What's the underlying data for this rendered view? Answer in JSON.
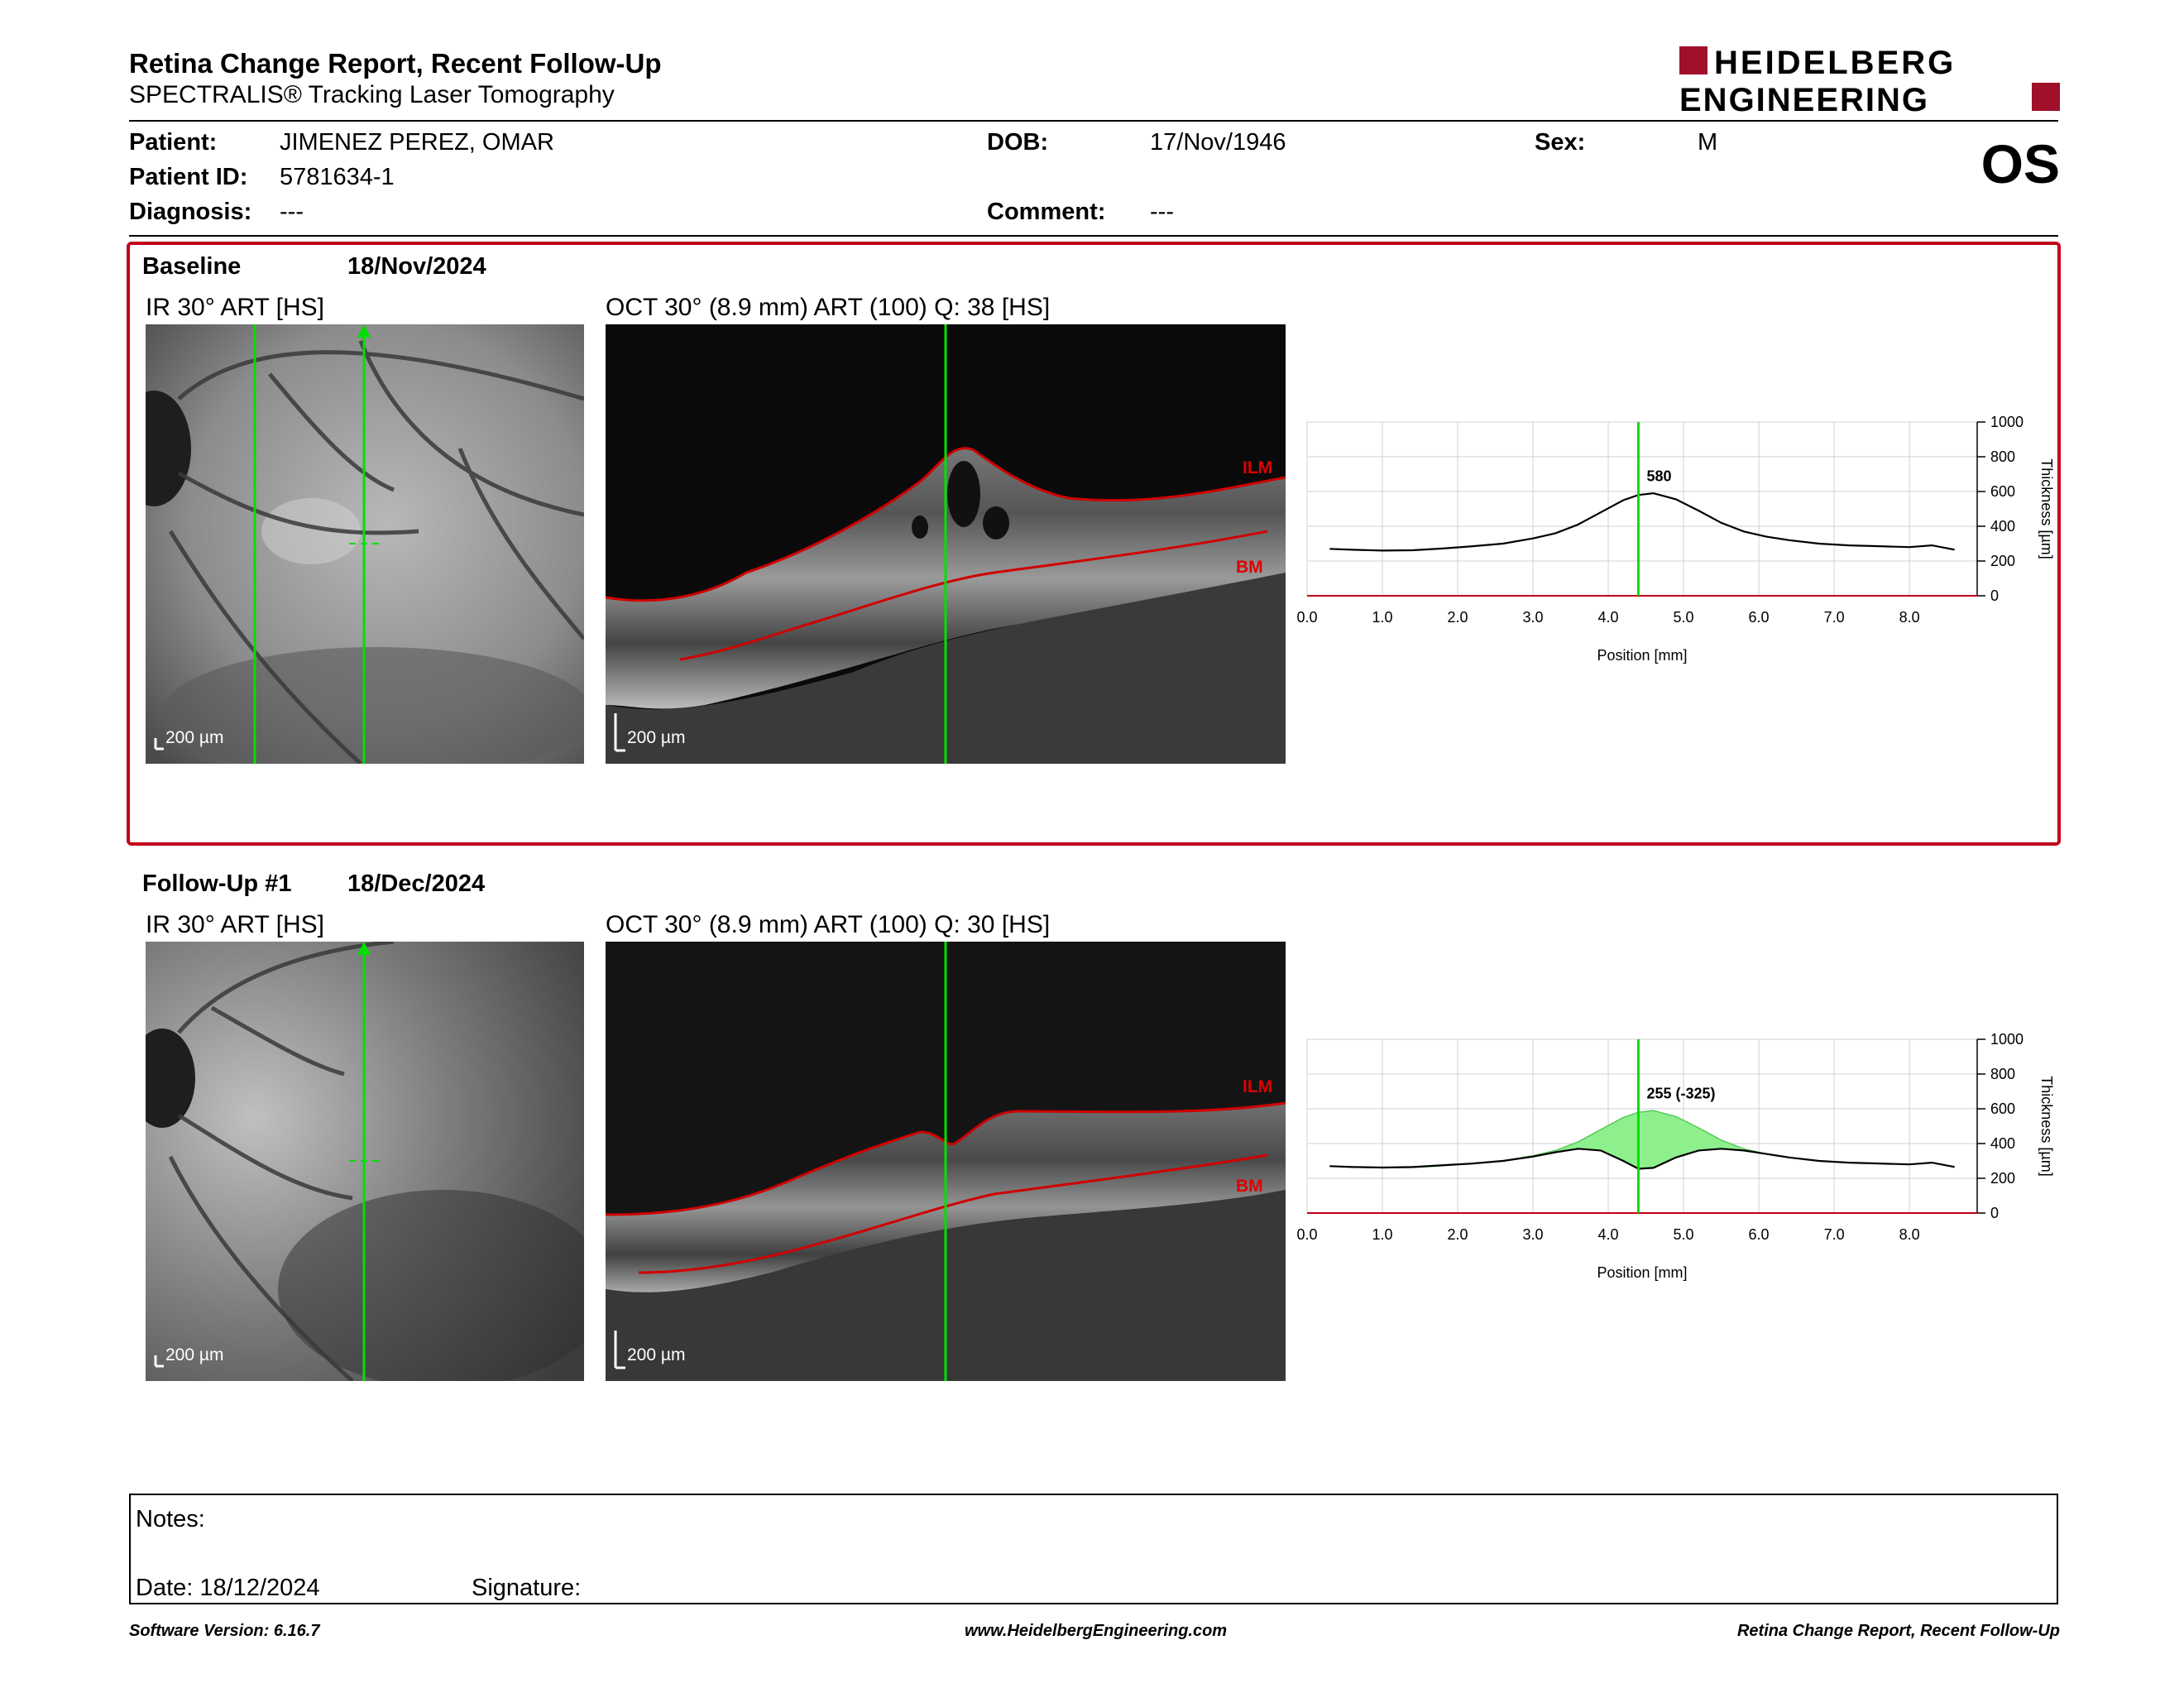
{
  "header": {
    "title": "Retina Change Report, Recent Follow-Up",
    "subtitle": "SPECTRALIS® Tracking Laser Tomography",
    "logo_line1": "HEIDELBERG",
    "logo_line2": "ENGINEERING",
    "eye": "OS"
  },
  "patient": {
    "patient_label": "Patient:",
    "patient_value": "JIMENEZ PEREZ, OMAR",
    "id_label": "Patient ID:",
    "id_value": "5781634-1",
    "diagnosis_label": "Diagnosis:",
    "diagnosis_value": "---",
    "dob_label": "DOB:",
    "dob_value": "17/Nov/1946",
    "comment_label": "Comment:",
    "comment_value": "---",
    "sex_label": "Sex:",
    "sex_value": "M"
  },
  "baseline": {
    "label": "Baseline",
    "date": "18/Nov/2024",
    "ir_title": "IR 30° ART [HS]",
    "oct_title": "OCT 30° (8.9 mm) ART (100) Q: 38 [HS]",
    "ir_scale": "200 µm",
    "oct_scale": "200 µm",
    "ilm": "ILM",
    "bm": "BM"
  },
  "followup": {
    "label": "Follow-Up #1",
    "date": "18/Dec/2024",
    "ir_title": "IR 30° ART [HS]",
    "oct_title": "OCT 30° (8.9 mm) ART (100) Q: 30 [HS]",
    "ir_scale": "200 µm",
    "oct_scale": "200 µm",
    "ilm": "ILM",
    "bm": "BM"
  },
  "notes": {
    "notes_label": "Notes:",
    "date_label": "Date: 18/12/2024",
    "signature_label": "Signature:"
  },
  "footer": {
    "left": "Software Version: 6.16.7",
    "center": "www.HeidelbergEngineering.com",
    "right": "Retina Change Report, Recent Follow-Up"
  },
  "colors": {
    "accent_red": "#c0001a",
    "scan_green": "#00e000",
    "fill_green": "#8df08d"
  },
  "chart_data": [
    {
      "type": "line",
      "xlabel": "Position [mm]",
      "ylabel": "Thickness [µm]",
      "xlim": [
        0,
        8.9
      ],
      "ylim": [
        0,
        1000
      ],
      "xticks": [
        "0.0",
        "1.0",
        "2.0",
        "3.0",
        "4.0",
        "5.0",
        "6.0",
        "7.0",
        "8.0"
      ],
      "yticks": [
        "0",
        "200",
        "400",
        "600",
        "800",
        "1000"
      ],
      "grid": true,
      "marker_x": 4.4,
      "annotation": "580",
      "series": [
        {
          "x": [
            0.3,
            0.6,
            1.0,
            1.4,
            1.8,
            2.2,
            2.6,
            3.0,
            3.3,
            3.6,
            3.9,
            4.2,
            4.4,
            4.6,
            4.9,
            5.2,
            5.5,
            5.8,
            6.1,
            6.4,
            6.8,
            7.2,
            7.6,
            8.0,
            8.3,
            8.6
          ],
          "y": [
            270,
            265,
            260,
            262,
            272,
            285,
            300,
            330,
            360,
            410,
            480,
            550,
            580,
            590,
            555,
            490,
            420,
            370,
            340,
            320,
            300,
            290,
            285,
            280,
            290,
            265
          ]
        }
      ]
    },
    {
      "type": "line",
      "xlabel": "Position [mm]",
      "ylabel": "Thickness [µm]",
      "xlim": [
        0,
        8.9
      ],
      "ylim": [
        0,
        1000
      ],
      "xticks": [
        "0.0",
        "1.0",
        "2.0",
        "3.0",
        "4.0",
        "5.0",
        "6.0",
        "7.0",
        "8.0"
      ],
      "yticks": [
        "0",
        "200",
        "400",
        "600",
        "800",
        "1000"
      ],
      "grid": true,
      "marker_x": 4.4,
      "annotation": "255 (-325)",
      "series": [
        {
          "x": [
            0.3,
            0.6,
            1.0,
            1.4,
            1.8,
            2.2,
            2.6,
            3.0,
            3.3,
            3.6,
            3.9,
            4.2,
            4.4,
            4.6,
            4.9,
            5.2,
            5.5,
            5.8,
            6.1,
            6.4,
            6.8,
            7.2,
            7.6,
            8.0,
            8.3,
            8.6
          ],
          "y": [
            270,
            265,
            262,
            265,
            275,
            285,
            300,
            325,
            350,
            370,
            360,
            300,
            255,
            260,
            320,
            360,
            370,
            360,
            340,
            320,
            300,
            290,
            285,
            280,
            290,
            265
          ]
        },
        {
          "x": [
            0.3,
            0.6,
            1.0,
            1.4,
            1.8,
            2.2,
            2.6,
            3.0,
            3.3,
            3.6,
            3.9,
            4.2,
            4.4,
            4.6,
            4.9,
            5.2,
            5.5,
            5.8,
            6.1,
            6.4,
            6.8,
            7.2,
            7.6,
            8.0,
            8.3,
            8.6
          ],
          "y": [
            270,
            265,
            260,
            262,
            272,
            285,
            300,
            330,
            360,
            410,
            480,
            550,
            580,
            590,
            555,
            490,
            420,
            370,
            340,
            320,
            300,
            290,
            285,
            280,
            290,
            265
          ]
        }
      ]
    }
  ]
}
